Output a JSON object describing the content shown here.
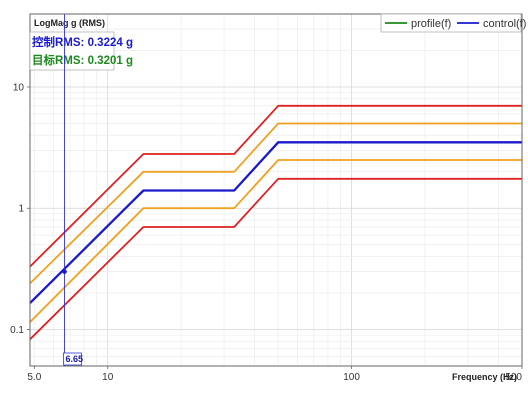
{
  "chart_data": {
    "type": "line",
    "title": "",
    "ylabel": "LogMag g (RMS)",
    "xlabel": "Frequency (Hz)",
    "x_scale": "log",
    "y_scale": "log",
    "xlim": [
      4.8,
      500
    ],
    "ylim": [
      0.05,
      40
    ],
    "x_ticks": [
      {
        "value": 5,
        "label": "5.0"
      },
      {
        "value": 10,
        "label": "10"
      },
      {
        "value": 100,
        "label": "100"
      },
      {
        "value": 500,
        "label": "500"
      }
    ],
    "y_ticks": [
      {
        "value": 0.1,
        "label": "0.1"
      },
      {
        "value": 1,
        "label": "1"
      },
      {
        "value": 10,
        "label": "10"
      }
    ],
    "grid": true,
    "legend": {
      "placement": "top-right",
      "entries": [
        {
          "name": "profile(f)",
          "color": "#1a8a1a"
        },
        {
          "name": "control(f)",
          "color": "#1a1acc"
        }
      ]
    },
    "rms": [
      {
        "label": "控制",
        "text": "RMS: 0.3224 g",
        "color": "#1a1acc"
      },
      {
        "label": "目标",
        "text": "RMS: 0.3201 g",
        "color": "#1a8a1a"
      }
    ],
    "cursor": {
      "x": 6.65,
      "label": "6.65",
      "y": 0.3
    },
    "series": [
      {
        "color": "#dd2222",
        "points": [
          [
            4.8,
            0.33
          ],
          [
            14,
            2.8
          ],
          [
            33,
            2.8
          ],
          [
            50,
            7
          ],
          [
            500,
            7
          ]
        ]
      },
      {
        "color": "#f0a020",
        "points": [
          [
            4.8,
            0.24
          ],
          [
            14,
            2.0
          ],
          [
            33,
            2.0
          ],
          [
            50,
            5
          ],
          [
            500,
            5
          ]
        ]
      },
      {
        "color": "#1a1acc",
        "points": [
          [
            4.8,
            0.165
          ],
          [
            14,
            1.4
          ],
          [
            33,
            1.4
          ],
          [
            50,
            3.5
          ],
          [
            500,
            3.5
          ]
        ]
      },
      {
        "color": "#f0a020",
        "points": [
          [
            4.8,
            0.115
          ],
          [
            14,
            1.0
          ],
          [
            33,
            1.0
          ],
          [
            50,
            2.5
          ],
          [
            500,
            2.5
          ]
        ]
      },
      {
        "color": "#dd2222",
        "points": [
          [
            4.8,
            0.083
          ],
          [
            14,
            0.7
          ],
          [
            33,
            0.7
          ],
          [
            50,
            1.75
          ],
          [
            500,
            1.75
          ]
        ]
      }
    ]
  }
}
